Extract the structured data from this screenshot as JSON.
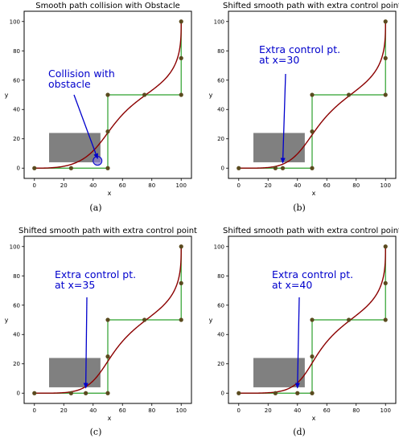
{
  "panels": [
    {
      "title": "Smooth path collision with Obstacle",
      "subfig_label": "(a)",
      "annotation": [
        "Collision with",
        "obstacle"
      ],
      "xlabel": "x",
      "ylabel": "y",
      "collision_marker": true
    },
    {
      "title": "Shifted smooth path with extra control point",
      "subfig_label": "(b)",
      "annotation": [
        "Extra control pt.",
        "at x=30"
      ],
      "xlabel": "x",
      "ylabel": "y",
      "collision_marker": false
    },
    {
      "title": "Shifted smooth path with extra control point",
      "subfig_label": "(c)",
      "annotation": [
        "Extra control pt.",
        "at x=35"
      ],
      "xlabel": "x",
      "ylabel": "y",
      "collision_marker": false
    },
    {
      "title": "Shifted smooth path with extra control point",
      "subfig_label": "(d)",
      "annotation": [
        "Extra control pt.",
        "at x=40"
      ],
      "xlabel": "x",
      "ylabel": "y",
      "collision_marker": false
    }
  ],
  "colors": {
    "control_polygon": "#2ca02c",
    "smooth_path": "#8b0000",
    "control_point": "#5a4a1e",
    "obstacle": "#808080",
    "annotation": "#0000cc"
  },
  "chart_data": [
    {
      "type": "line",
      "xlim": [
        -7,
        107
      ],
      "ylim": [
        -7,
        107
      ],
      "xticks": [
        0,
        20,
        40,
        60,
        80,
        100
      ],
      "yticks": [
        0,
        20,
        40,
        60,
        80,
        100
      ],
      "obstacle": {
        "x": [
          10,
          45
        ],
        "y": [
          4,
          24
        ]
      },
      "control_points": [
        [
          0,
          0
        ],
        [
          25,
          0
        ],
        [
          50,
          0
        ],
        [
          50,
          25
        ],
        [
          50,
          50
        ],
        [
          75,
          50
        ],
        [
          100,
          50
        ],
        [
          100,
          75
        ],
        [
          100,
          100
        ]
      ],
      "collision_point": [
        43,
        5
      ],
      "annotation_target": [
        43,
        5
      ]
    },
    {
      "type": "line",
      "xlim": [
        -7,
        107
      ],
      "ylim": [
        -7,
        107
      ],
      "xticks": [
        0,
        20,
        40,
        60,
        80,
        100
      ],
      "yticks": [
        0,
        20,
        40,
        60,
        80,
        100
      ],
      "obstacle": {
        "x": [
          10,
          45
        ],
        "y": [
          4,
          24
        ]
      },
      "control_points": [
        [
          0,
          0
        ],
        [
          25,
          0
        ],
        [
          30,
          0
        ],
        [
          50,
          0
        ],
        [
          50,
          25
        ],
        [
          50,
          50
        ],
        [
          75,
          50
        ],
        [
          100,
          50
        ],
        [
          100,
          75
        ],
        [
          100,
          100
        ]
      ],
      "annotation_target": [
        30,
        2
      ]
    },
    {
      "type": "line",
      "xlim": [
        -7,
        107
      ],
      "ylim": [
        -7,
        107
      ],
      "xticks": [
        0,
        20,
        40,
        60,
        80,
        100
      ],
      "yticks": [
        0,
        20,
        40,
        60,
        80,
        100
      ],
      "obstacle": {
        "x": [
          10,
          45
        ],
        "y": [
          4,
          24
        ]
      },
      "control_points": [
        [
          0,
          0
        ],
        [
          25,
          0
        ],
        [
          35,
          0
        ],
        [
          50,
          0
        ],
        [
          50,
          25
        ],
        [
          50,
          50
        ],
        [
          75,
          50
        ],
        [
          100,
          50
        ],
        [
          100,
          75
        ],
        [
          100,
          100
        ]
      ],
      "annotation_target": [
        35,
        2
      ]
    },
    {
      "type": "line",
      "xlim": [
        -7,
        107
      ],
      "ylim": [
        -7,
        107
      ],
      "xticks": [
        0,
        20,
        40,
        60,
        80,
        100
      ],
      "yticks": [
        0,
        20,
        40,
        60,
        80,
        100
      ],
      "obstacle": {
        "x": [
          10,
          45
        ],
        "y": [
          4,
          24
        ]
      },
      "control_points": [
        [
          0,
          0
        ],
        [
          25,
          0
        ],
        [
          40,
          0
        ],
        [
          50,
          0
        ],
        [
          50,
          25
        ],
        [
          50,
          50
        ],
        [
          75,
          50
        ],
        [
          100,
          50
        ],
        [
          100,
          75
        ],
        [
          100,
          100
        ]
      ],
      "annotation_target": [
        40,
        2
      ]
    }
  ]
}
